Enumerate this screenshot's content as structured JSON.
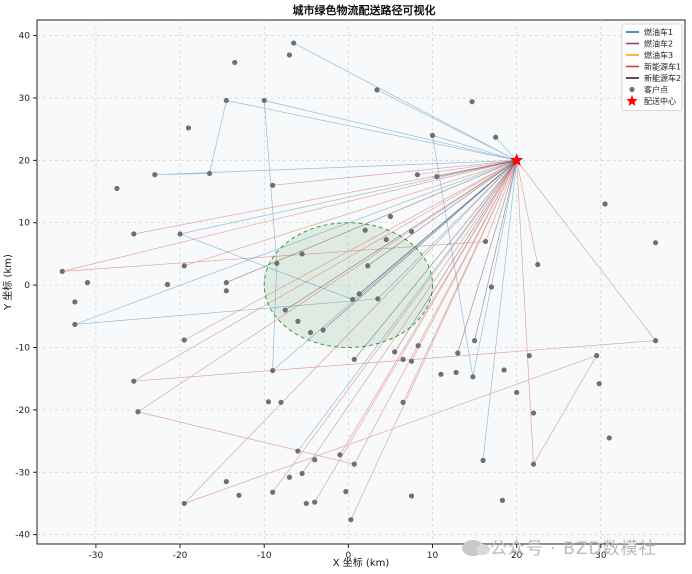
{
  "chart_data": {
    "type": "scatter",
    "title": "城市绿色物流配送路径可视化",
    "xlabel": "X 坐标 (km)",
    "ylabel": "Y 坐标 (km)",
    "xlim": [
      -37,
      40
    ],
    "ylim": [
      -41.5,
      42.5
    ],
    "xticks": [
      -30,
      -20,
      -10,
      0,
      10,
      20,
      30
    ],
    "yticks": [
      -40,
      -30,
      -20,
      -10,
      0,
      10,
      20,
      30,
      40
    ],
    "grid": true,
    "legend_position": "top-right",
    "depot": {
      "name": "配送中心",
      "x": 20,
      "y": 20,
      "color": "#ff0000"
    },
    "customer_series_name": "客户点",
    "customer_color": "#707070",
    "green_zone": {
      "center": [
        0,
        0
      ],
      "radius": 10,
      "fill": "#2e8b2e",
      "stroke": "#3a9a3a"
    },
    "vehicles": [
      {
        "name": "燃油车1",
        "color": "#1f77b4"
      },
      {
        "name": "燃油车2",
        "color": "#9b3a7a"
      },
      {
        "name": "燃油车3",
        "color": "#ff9f1c"
      },
      {
        "name": "新能源车1",
        "color": "#c9452e"
      },
      {
        "name": "新能源车2",
        "color": "#3b1a2a"
      }
    ],
    "customers": [
      {
        "x": -6.5,
        "y": 38.8
      },
      {
        "x": -7,
        "y": 36.9
      },
      {
        "x": -13.5,
        "y": 35.7
      },
      {
        "x": 3.4,
        "y": 31.3
      },
      {
        "x": -14.5,
        "y": 29.6
      },
      {
        "x": -10,
        "y": 29.6
      },
      {
        "x": 14.7,
        "y": 29.4
      },
      {
        "x": -19,
        "y": 25.2
      },
      {
        "x": 10,
        "y": 24
      },
      {
        "x": 17.5,
        "y": 23.7
      },
      {
        "x": -23,
        "y": 17.7
      },
      {
        "x": -16.5,
        "y": 17.9
      },
      {
        "x": 8.2,
        "y": 17.7
      },
      {
        "x": 10.5,
        "y": 17.4
      },
      {
        "x": -27.5,
        "y": 15.5
      },
      {
        "x": -9,
        "y": 16
      },
      {
        "x": 30.5,
        "y": 13
      },
      {
        "x": 5,
        "y": 11
      },
      {
        "x": -25.5,
        "y": 8.2
      },
      {
        "x": -20,
        "y": 8.2
      },
      {
        "x": 2,
        "y": 8.8
      },
      {
        "x": 7.5,
        "y": 8.6
      },
      {
        "x": 4.5,
        "y": 7.3
      },
      {
        "x": 16.3,
        "y": 7
      },
      {
        "x": 36.5,
        "y": 6.8
      },
      {
        "x": -5.5,
        "y": 5
      },
      {
        "x": -19.5,
        "y": 3.1
      },
      {
        "x": -8.5,
        "y": 3.5
      },
      {
        "x": 2.3,
        "y": 3.1
      },
      {
        "x": 22.5,
        "y": 3.3
      },
      {
        "x": -34,
        "y": 2.2
      },
      {
        "x": -31,
        "y": 0.4
      },
      {
        "x": -14.5,
        "y": 0.4
      },
      {
        "x": -21.5,
        "y": 0.1
      },
      {
        "x": -14.5,
        "y": -0.9
      },
      {
        "x": 17,
        "y": -0.3
      },
      {
        "x": 1.3,
        "y": -1.4
      },
      {
        "x": 0.5,
        "y": -2.3
      },
      {
        "x": 3.5,
        "y": -2.2
      },
      {
        "x": -32.5,
        "y": -2.7
      },
      {
        "x": -7.5,
        "y": -4
      },
      {
        "x": -6,
        "y": -5.8
      },
      {
        "x": -4.5,
        "y": -7.6
      },
      {
        "x": -3,
        "y": -7.2
      },
      {
        "x": -32.5,
        "y": -6.3
      },
      {
        "x": 15,
        "y": -8.9
      },
      {
        "x": 36.5,
        "y": -8.9
      },
      {
        "x": 8.3,
        "y": -9.7
      },
      {
        "x": -19.5,
        "y": -8.8
      },
      {
        "x": 5.5,
        "y": -10.7
      },
      {
        "x": 13,
        "y": -10.9
      },
      {
        "x": 21.5,
        "y": -11.3
      },
      {
        "x": 29.5,
        "y": -11.3
      },
      {
        "x": 6.5,
        "y": -11.9
      },
      {
        "x": 0.7,
        "y": -11.9
      },
      {
        "x": 7.5,
        "y": -12.2
      },
      {
        "x": -9,
        "y": -13.7
      },
      {
        "x": 18.5,
        "y": -13.6
      },
      {
        "x": 11,
        "y": -14.3
      },
      {
        "x": 12.8,
        "y": -14
      },
      {
        "x": 14.8,
        "y": -14.7
      },
      {
        "x": -25.5,
        "y": -15.4
      },
      {
        "x": 29.8,
        "y": -15.8
      },
      {
        "x": 20,
        "y": -17.2
      },
      {
        "x": -9.5,
        "y": -18.7
      },
      {
        "x": -8,
        "y": -18.8
      },
      {
        "x": 6.5,
        "y": -18.8
      },
      {
        "x": -25,
        "y": -20.3
      },
      {
        "x": 22,
        "y": -20.5
      },
      {
        "x": 31,
        "y": -24.5
      },
      {
        "x": -6,
        "y": -26.6
      },
      {
        "x": -1,
        "y": -27.2
      },
      {
        "x": -4,
        "y": -28
      },
      {
        "x": 0.7,
        "y": -28.7
      },
      {
        "x": 16,
        "y": -28.1
      },
      {
        "x": 22,
        "y": -28.7
      },
      {
        "x": -5.5,
        "y": -30.2
      },
      {
        "x": -7,
        "y": -30.8
      },
      {
        "x": -14.5,
        "y": -31.5
      },
      {
        "x": -13,
        "y": -33.7
      },
      {
        "x": -9,
        "y": -33.2
      },
      {
        "x": -0.3,
        "y": -33.1
      },
      {
        "x": 7.5,
        "y": -33.8
      },
      {
        "x": -19.5,
        "y": -35
      },
      {
        "x": -4,
        "y": -34.8
      },
      {
        "x": -5,
        "y": -35
      },
      {
        "x": 18.3,
        "y": -34.5
      },
      {
        "x": 0.3,
        "y": -37.6
      }
    ],
    "routes": [
      {
        "vehicle": "燃油车1",
        "path": [
          [
            20,
            20
          ],
          [
            -6.5,
            38.8
          ],
          [
            20,
            20
          ],
          [
            -14.5,
            29.6
          ],
          [
            -16.5,
            17.9
          ],
          [
            -23,
            17.7
          ],
          [
            20,
            20
          ],
          [
            -10,
            29.6
          ],
          [
            -8.5,
            3.5
          ],
          [
            -9,
            -13.7
          ],
          [
            20,
            20
          ],
          [
            3.4,
            31.3
          ],
          [
            20,
            20
          ],
          [
            10,
            24
          ],
          [
            14.8,
            -14.7
          ],
          [
            20,
            20
          ],
          [
            17.5,
            23.7
          ],
          [
            20,
            20
          ],
          [
            -20,
            8.2
          ],
          [
            0.5,
            -2.3
          ],
          [
            20,
            20
          ],
          [
            -32.5,
            -6.3
          ],
          [
            3.5,
            -2.2
          ],
          [
            20,
            20
          ],
          [
            16,
            -28.1
          ],
          [
            20,
            20
          ],
          [
            -6,
            -26.6
          ],
          [
            20,
            20
          ]
        ]
      },
      {
        "vehicle": "燃油车2",
        "path": [
          [
            20,
            20
          ],
          [
            -9,
            16
          ],
          [
            20,
            20
          ]
        ]
      },
      {
        "vehicle": "新能源车1",
        "path": [
          [
            20,
            20
          ],
          [
            -25.5,
            8.2
          ],
          [
            20,
            20
          ],
          [
            -34,
            2.2
          ],
          [
            16.3,
            7
          ],
          [
            20,
            20
          ],
          [
            -19.5,
            3.1
          ],
          [
            20,
            20
          ],
          [
            8.2,
            17.7
          ],
          [
            20,
            20
          ],
          [
            22.5,
            3.3
          ],
          [
            20,
            20
          ],
          [
            36.5,
            -8.9
          ],
          [
            -25.5,
            -15.4
          ],
          [
            20,
            20
          ],
          [
            -19.5,
            -8.8
          ],
          [
            20,
            20
          ],
          [
            -25,
            -20.3
          ],
          [
            0.7,
            -28.7
          ],
          [
            20,
            20
          ],
          [
            22,
            -28.7
          ],
          [
            29.5,
            -11.3
          ],
          [
            -19.5,
            -35
          ],
          [
            20,
            20
          ],
          [
            -5.5,
            -30.2
          ],
          [
            20,
            20
          ],
          [
            0.3,
            -37.6
          ],
          [
            20,
            20
          ],
          [
            -9,
            -33.2
          ],
          [
            20,
            20
          ],
          [
            7.5,
            -12.2
          ],
          [
            20,
            20
          ],
          [
            -4,
            -34.8
          ],
          [
            20,
            20
          ],
          [
            6.5,
            -18.8
          ],
          [
            20,
            20
          ],
          [
            -1,
            -27.2
          ],
          [
            20,
            20
          ]
        ]
      },
      {
        "vehicle": "新能源车2",
        "path": [
          [
            20,
            20
          ],
          [
            2.3,
            3.1
          ],
          [
            20,
            20
          ],
          [
            1.3,
            -1.4
          ],
          [
            20,
            20
          ],
          [
            -3,
            -7.2
          ],
          [
            20,
            20
          ],
          [
            5.5,
            -10.7
          ],
          [
            20,
            20
          ],
          [
            0.7,
            -11.9
          ],
          [
            20,
            20
          ],
          [
            13,
            -10.9
          ],
          [
            20,
            20
          ],
          [
            -7.5,
            -4
          ],
          [
            20,
            20
          ],
          [
            10.5,
            17.4
          ],
          [
            20,
            20
          ],
          [
            -14.5,
            0.4
          ],
          [
            20,
            20
          ],
          [
            15,
            -8.9
          ],
          [
            20,
            20
          ]
        ]
      }
    ]
  }
}
